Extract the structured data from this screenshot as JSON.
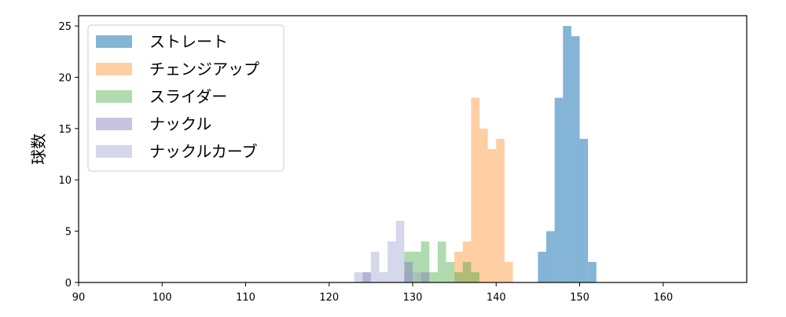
{
  "chart_data": {
    "type": "bar",
    "subtype": "histogram",
    "title": "",
    "xlabel": "",
    "ylabel": "球数",
    "xlim": [
      90,
      170
    ],
    "ylim": [
      0,
      26
    ],
    "xticks": [
      90,
      100,
      110,
      120,
      130,
      140,
      150,
      160
    ],
    "yticks": [
      0,
      5,
      10,
      15,
      20,
      25
    ],
    "grid": false,
    "legend_position": "top-left",
    "series": [
      {
        "name": "ストレート",
        "color": "#1f77b4",
        "opacity": 0.55,
        "bins": [
          {
            "x0": 145,
            "x1": 146,
            "count": 3
          },
          {
            "x0": 146,
            "x1": 147,
            "count": 5
          },
          {
            "x0": 147,
            "x1": 148,
            "count": 18
          },
          {
            "x0": 148,
            "x1": 149,
            "count": 25
          },
          {
            "x0": 149,
            "x1": 150,
            "count": 24
          },
          {
            "x0": 150,
            "x1": 151,
            "count": 14
          },
          {
            "x0": 151,
            "x1": 152,
            "count": 2
          }
        ]
      },
      {
        "name": "チェンジアップ",
        "color": "#ff7f0e",
        "opacity": 0.38,
        "bins": [
          {
            "x0": 135,
            "x1": 136,
            "count": 3
          },
          {
            "x0": 136,
            "x1": 137,
            "count": 4
          },
          {
            "x0": 137,
            "x1": 138,
            "count": 18
          },
          {
            "x0": 138,
            "x1": 139,
            "count": 15
          },
          {
            "x0": 139,
            "x1": 140,
            "count": 13
          },
          {
            "x0": 140,
            "x1": 141,
            "count": 14
          },
          {
            "x0": 141,
            "x1": 142,
            "count": 2
          }
        ]
      },
      {
        "name": "スライダー",
        "color": "#2ca02c",
        "opacity": 0.38,
        "bins": [
          {
            "x0": 129,
            "x1": 130,
            "count": 3
          },
          {
            "x0": 130,
            "x1": 131,
            "count": 3
          },
          {
            "x0": 131,
            "x1": 132,
            "count": 4
          },
          {
            "x0": 132,
            "x1": 133,
            "count": 1
          },
          {
            "x0": 133,
            "x1": 134,
            "count": 4
          },
          {
            "x0": 134,
            "x1": 135,
            "count": 2
          },
          {
            "x0": 135,
            "x1": 136,
            "count": 1
          },
          {
            "x0": 136,
            "x1": 137,
            "count": 2
          },
          {
            "x0": 137,
            "x1": 138,
            "count": 1
          }
        ]
      },
      {
        "name": "ナックル",
        "color": "#7b6fb5",
        "opacity": 0.42,
        "bins": [
          {
            "x0": 124,
            "x1": 125,
            "count": 1
          },
          {
            "x0": 129,
            "x1": 130,
            "count": 2
          },
          {
            "x0": 131,
            "x1": 132,
            "count": 1
          }
        ]
      },
      {
        "name": "ナックルカーブ",
        "color": "#9b9fcc",
        "opacity": 0.42,
        "bins": [
          {
            "x0": 123,
            "x1": 124,
            "count": 1
          },
          {
            "x0": 124,
            "x1": 125,
            "count": 1
          },
          {
            "x0": 125,
            "x1": 126,
            "count": 3
          },
          {
            "x0": 126,
            "x1": 127,
            "count": 1
          },
          {
            "x0": 127,
            "x1": 128,
            "count": 4
          },
          {
            "x0": 128,
            "x1": 129,
            "count": 6
          },
          {
            "x0": 129,
            "x1": 130,
            "count": 1
          },
          {
            "x0": 130,
            "x1": 131,
            "count": 1
          }
        ]
      }
    ]
  }
}
